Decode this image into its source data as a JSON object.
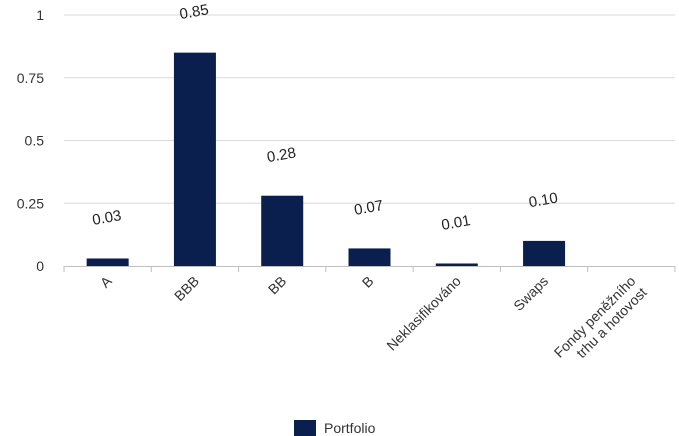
{
  "chart_data": {
    "type": "bar",
    "categories": [
      "A",
      "BBB",
      "BB",
      "B",
      "Neklasifikováno",
      "Swaps",
      "Fondy peněžního trhu a hotovost"
    ],
    "category_lines": [
      [
        "A"
      ],
      [
        "BBB"
      ],
      [
        "BB"
      ],
      [
        "B"
      ],
      [
        "Neklasifikováno"
      ],
      [
        "Swaps"
      ],
      [
        "Fondy peněžního",
        "trhu a hotovost"
      ]
    ],
    "series": [
      {
        "name": "Portfolio",
        "values": [
          0.03,
          0.85,
          0.28,
          0.07,
          0.01,
          0.1,
          0
        ],
        "labels": [
          "0.03",
          "0.85",
          "0.28",
          "0.07",
          "0.01",
          "0.10",
          ""
        ]
      }
    ],
    "ylim": [
      0,
      1
    ],
    "yticks": [
      0,
      0.25,
      0.5,
      0.75,
      1
    ],
    "ytick_labels": [
      "0",
      "0.25",
      "0.5",
      "0.75",
      "1"
    ],
    "grid": true,
    "legend_position": "bottom",
    "colors": {
      "bar": "#0a1f4e",
      "grid": "#d9d9d9",
      "axis": "#bfbfbf"
    }
  }
}
